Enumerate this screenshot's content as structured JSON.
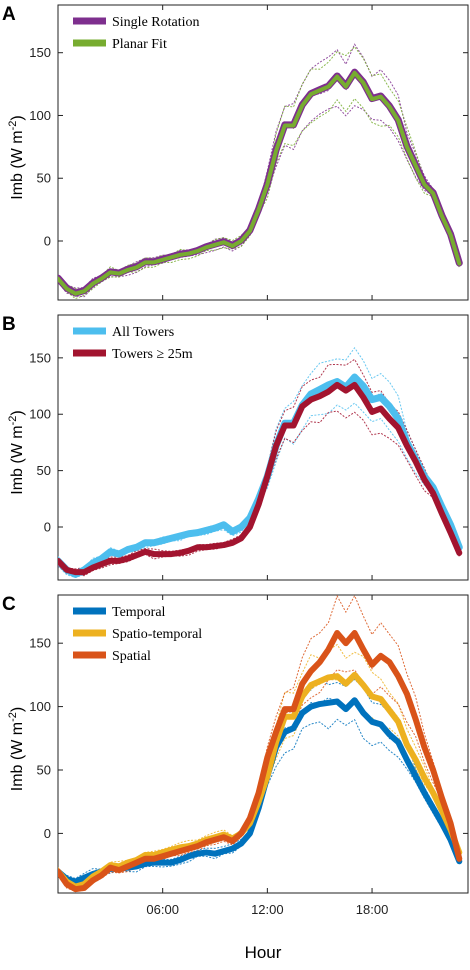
{
  "x_label": "Hour",
  "chart_data": [
    {
      "panel": "A",
      "type": "line",
      "ylabel": "Imb (W m",
      "ylabel_sup": "-2",
      "ylabel_end": ")",
      "ylim": [
        -47,
        188
      ],
      "yticks": [
        0,
        50,
        100,
        150
      ],
      "xlim": [
        0,
        23.5
      ],
      "xticks": [
        {
          "value": 6,
          "label": "06:00"
        },
        {
          "value": 12,
          "label": "12:00"
        },
        {
          "value": 18,
          "label": "18:00"
        }
      ],
      "legend": "top-left",
      "series": [
        {
          "name": "Single Rotation",
          "color": "#7e2f8e",
          "width": 7,
          "offset": 0.6,
          "x": [
            0,
            0.5,
            1,
            1.5,
            2,
            2.5,
            3,
            3.5,
            4,
            4.5,
            5,
            5.5,
            6,
            6.5,
            7,
            7.5,
            8,
            8.5,
            9,
            9.5,
            10,
            10.5,
            11,
            11.5,
            12,
            12.5,
            13,
            13.5,
            14,
            14.5,
            15,
            15.5,
            16,
            16.5,
            17,
            17.5,
            18,
            18.5,
            19,
            19.5,
            20,
            20.5,
            21,
            21.5,
            22,
            22.5,
            23
          ],
          "y": [
            -30,
            -38,
            -42,
            -40,
            -34,
            -30,
            -25,
            -26,
            -23,
            -21,
            -17,
            -17,
            -15,
            -13,
            -11,
            -10,
            -8,
            -5,
            -3,
            -1,
            -4,
            0,
            8,
            25,
            45,
            72,
            92,
            92,
            108,
            117,
            120,
            123,
            131,
            123,
            134,
            126,
            113,
            115,
            107,
            96,
            75,
            60,
            45,
            38,
            20,
            5,
            -18
          ]
        },
        {
          "name": "Planar Fit",
          "color": "#77ac30",
          "width": 4,
          "offset": 0,
          "x": [
            0,
            0.5,
            1,
            1.5,
            2,
            2.5,
            3,
            3.5,
            4,
            4.5,
            5,
            5.5,
            6,
            6.5,
            7,
            7.5,
            8,
            8.5,
            9,
            9.5,
            10,
            10.5,
            11,
            11.5,
            12,
            12.5,
            13,
            13.5,
            14,
            14.5,
            15,
            15.5,
            16,
            16.5,
            17,
            17.5,
            18,
            18.5,
            19,
            19.5,
            20,
            20.5,
            21,
            21.5,
            22,
            22.5,
            23
          ],
          "y": [
            -30,
            -38,
            -42,
            -40,
            -34,
            -30,
            -25,
            -26,
            -23,
            -21,
            -17,
            -17,
            -15,
            -13,
            -11,
            -10,
            -8,
            -5,
            -3,
            -1,
            -4,
            0,
            8,
            25,
            45,
            72,
            92,
            92,
            108,
            117,
            120,
            123,
            131,
            123,
            134,
            126,
            113,
            115,
            107,
            96,
            75,
            60,
            45,
            38,
            20,
            5,
            -18
          ]
        }
      ]
    },
    {
      "panel": "B",
      "type": "line",
      "ylabel": "Imb (W m",
      "ylabel_sup": "-2",
      "ylabel_end": ")",
      "ylim": [
        -47,
        188
      ],
      "yticks": [
        0,
        50,
        100,
        150
      ],
      "xlim": [
        0,
        23.5
      ],
      "xticks": [
        {
          "value": 6,
          "label": "06:00"
        },
        {
          "value": 12,
          "label": "12:00"
        },
        {
          "value": 18,
          "label": "18:00"
        }
      ],
      "legend": "top-left",
      "series": [
        {
          "name": "All Towers",
          "color": "#4dbeee",
          "width": 7,
          "offset": 0,
          "x": [
            0,
            0.5,
            1,
            1.5,
            2,
            2.5,
            3,
            3.5,
            4,
            4.5,
            5,
            5.5,
            6,
            6.5,
            7,
            7.5,
            8,
            8.5,
            9,
            9.5,
            10,
            10.5,
            11,
            11.5,
            12,
            12.5,
            13,
            13.5,
            14,
            14.5,
            15,
            15.5,
            16,
            16.5,
            17,
            17.5,
            18,
            18.5,
            19,
            19.5,
            20,
            20.5,
            21,
            21.5,
            22,
            22.5,
            23
          ],
          "y": [
            -30,
            -38,
            -42,
            -38,
            -32,
            -28,
            -22,
            -24,
            -20,
            -18,
            -14,
            -14,
            -12,
            -10,
            -8,
            -6,
            -5,
            -3,
            -1,
            2,
            -4,
            0,
            8,
            25,
            45,
            72,
            92,
            92,
            108,
            118,
            122,
            126,
            129,
            124,
            133,
            125,
            113,
            115,
            107,
            96,
            75,
            60,
            45,
            35,
            18,
            2,
            -18
          ]
        },
        {
          "name": "Towers ≥ 25m",
          "color": "#a2142f",
          "width": 6,
          "offset": 0,
          "x": [
            0,
            0.5,
            1,
            1.5,
            2,
            2.5,
            3,
            3.5,
            4,
            4.5,
            5,
            5.5,
            6,
            6.5,
            7,
            7.5,
            8,
            8.5,
            9,
            9.5,
            10,
            10.5,
            11,
            11.5,
            12,
            12.5,
            13,
            13.5,
            14,
            14.5,
            15,
            15.5,
            16,
            16.5,
            17,
            17.5,
            18,
            18.5,
            19,
            19.5,
            20,
            20.5,
            21,
            21.5,
            22,
            22.5,
            23
          ],
          "y": [
            -30,
            -38,
            -40,
            -40,
            -36,
            -33,
            -30,
            -30,
            -28,
            -25,
            -22,
            -24,
            -24,
            -24,
            -23,
            -21,
            -18,
            -18,
            -17,
            -16,
            -14,
            -10,
            0,
            20,
            45,
            72,
            90,
            90,
            107,
            113,
            116,
            120,
            126,
            121,
            126,
            115,
            102,
            105,
            96,
            88,
            72,
            58,
            42,
            30,
            12,
            -5,
            -23
          ]
        }
      ]
    },
    {
      "panel": "C",
      "type": "line",
      "ylabel": "Imb (W m",
      "ylabel_sup": "-2",
      "ylabel_end": ")",
      "ylim": [
        -47,
        188
      ],
      "yticks": [
        0,
        50,
        100,
        150
      ],
      "xlim": [
        0,
        23.5
      ],
      "xticks": [
        {
          "value": 6,
          "label": "06:00"
        },
        {
          "value": 12,
          "label": "12:00"
        },
        {
          "value": 18,
          "label": "18:00"
        }
      ],
      "legend": "top-left",
      "series": [
        {
          "name": "Temporal",
          "color": "#0072bd",
          "width": 6,
          "offset": 0,
          "x": [
            0,
            0.5,
            1,
            1.5,
            2,
            2.5,
            3,
            3.5,
            4,
            4.5,
            5,
            5.5,
            6,
            6.5,
            7,
            7.5,
            8,
            8.5,
            9,
            9.5,
            10,
            10.5,
            11,
            11.5,
            12,
            12.5,
            13,
            13.5,
            14,
            14.5,
            15,
            15.5,
            16,
            16.5,
            17,
            17.5,
            18,
            18.5,
            19,
            19.5,
            20,
            20.5,
            21,
            21.5,
            22,
            22.5,
            23
          ],
          "y": [
            -30,
            -36,
            -38,
            -35,
            -32,
            -30,
            -28,
            -28,
            -27,
            -26,
            -24,
            -23,
            -23,
            -23,
            -21,
            -18,
            -16,
            -15,
            -16,
            -14,
            -12,
            -8,
            0,
            20,
            45,
            68,
            80,
            83,
            95,
            100,
            102,
            103,
            104,
            98,
            105,
            95,
            88,
            86,
            78,
            72,
            58,
            45,
            32,
            20,
            8,
            -5,
            -22
          ]
        },
        {
          "name": "Spatio-temporal",
          "color": "#edb120",
          "width": 6,
          "offset": 0,
          "x": [
            0,
            0.5,
            1,
            1.5,
            2,
            2.5,
            3,
            3.5,
            4,
            4.5,
            5,
            5.5,
            6,
            6.5,
            7,
            7.5,
            8,
            8.5,
            9,
            9.5,
            10,
            10.5,
            11,
            11.5,
            12,
            12.5,
            13,
            13.5,
            14,
            14.5,
            15,
            15.5,
            16,
            16.5,
            17,
            17.5,
            18,
            18.5,
            19,
            19.5,
            20,
            20.5,
            21,
            21.5,
            22,
            22.5,
            23
          ],
          "y": [
            -30,
            -38,
            -42,
            -40,
            -34,
            -30,
            -25,
            -26,
            -23,
            -21,
            -17,
            -17,
            -15,
            -13,
            -11,
            -10,
            -8,
            -5,
            -3,
            -1,
            -4,
            0,
            8,
            25,
            45,
            72,
            92,
            92,
            108,
            117,
            120,
            123,
            124,
            118,
            125,
            117,
            108,
            106,
            97,
            88,
            70,
            58,
            44,
            32,
            18,
            3,
            -15
          ]
        },
        {
          "name": "Spatial",
          "color": "#d95319",
          "width": 6,
          "offset": 0,
          "x": [
            0,
            0.5,
            1,
            1.5,
            2,
            2.5,
            3,
            3.5,
            4,
            4.5,
            5,
            5.5,
            6,
            6.5,
            7,
            7.5,
            8,
            8.5,
            9,
            9.5,
            10,
            10.5,
            11,
            11.5,
            12,
            12.5,
            13,
            13.5,
            14,
            14.5,
            15,
            15.5,
            16,
            16.5,
            17,
            17.5,
            18,
            18.5,
            19,
            19.5,
            20,
            20.5,
            21,
            21.5,
            22,
            22.5,
            23
          ],
          "y": [
            -30,
            -40,
            -44,
            -43,
            -37,
            -33,
            -27,
            -29,
            -26,
            -23,
            -20,
            -20,
            -18,
            -16,
            -14,
            -12,
            -10,
            -7,
            -5,
            -3,
            -6,
            0,
            12,
            32,
            60,
            80,
            98,
            98,
            118,
            128,
            135,
            145,
            158,
            150,
            158,
            145,
            133,
            140,
            135,
            124,
            110,
            90,
            68,
            50,
            28,
            8,
            -20
          ]
        }
      ]
    }
  ]
}
